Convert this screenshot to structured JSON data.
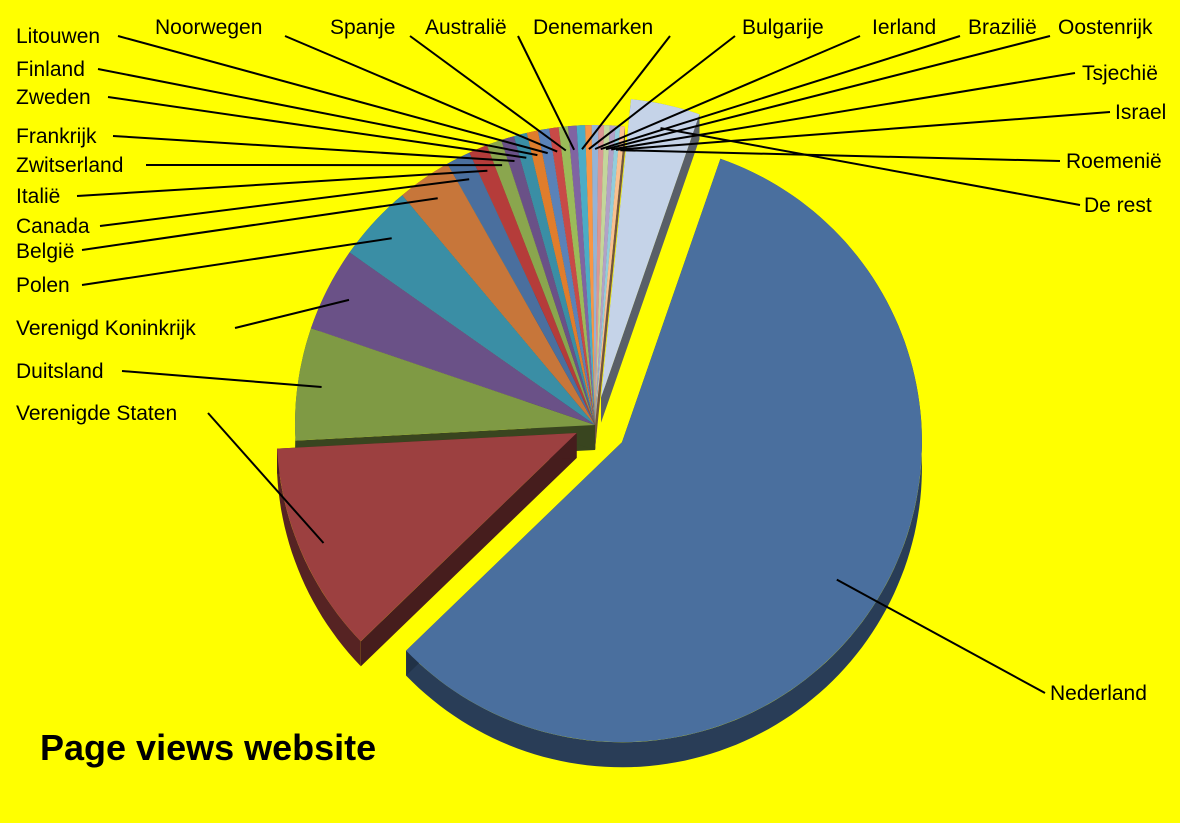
{
  "chart_data": {
    "type": "pie",
    "style": "3d-exploded",
    "title": "Page views website",
    "background": "#ffff00",
    "exploded": [
      "Nederland",
      "De rest",
      "Verenigde Staten"
    ],
    "slices": [
      {
        "label": "Nederland",
        "value": 57,
        "color": "#4a6f9e"
      },
      {
        "label": "Verenigde Staten",
        "value": 11.3,
        "color": "#9c4040"
      },
      {
        "label": "Duitsland",
        "value": 6.0,
        "color": "#7f9a44"
      },
      {
        "label": "Verenigd Koninkrijk",
        "value": 4.5,
        "color": "#6a5187"
      },
      {
        "label": "Polen",
        "value": 4.1,
        "color": "#3a8ea5"
      },
      {
        "label": "België",
        "value": 2.9,
        "color": "#c7763a"
      },
      {
        "label": "Canada",
        "value": 1.3,
        "color": "#4a6f9e"
      },
      {
        "label": "Italië",
        "value": 1.0,
        "color": "#b53c3a"
      },
      {
        "label": "Zwitserland",
        "value": 0.8,
        "color": "#8aa64e"
      },
      {
        "label": "Frankrijk",
        "value": 0.7,
        "color": "#6a5187"
      },
      {
        "label": "Zweden",
        "value": 0.7,
        "color": "#3a8ea5"
      },
      {
        "label": "Finland",
        "value": 0.6,
        "color": "#e07d2c"
      },
      {
        "label": "Litouwen",
        "value": 0.6,
        "color": "#5a82b8"
      },
      {
        "label": "Noorwegen",
        "value": 0.5,
        "color": "#c84a47"
      },
      {
        "label": "Spanje",
        "value": 0.5,
        "color": "#9bbb59"
      },
      {
        "label": "Australië",
        "value": 0.45,
        "color": "#8064a2"
      },
      {
        "label": "Denemarken",
        "value": 0.45,
        "color": "#4bacc6"
      },
      {
        "label": "Bulgarije",
        "value": 0.35,
        "color": "#f79646"
      },
      {
        "label": "Ierland",
        "value": 0.35,
        "color": "#95b3d7"
      },
      {
        "label": "Brazilië",
        "value": 0.3,
        "color": "#da9694"
      },
      {
        "label": "Oostenrijk",
        "value": 0.3,
        "color": "#c3d69b"
      },
      {
        "label": "Tsjechië",
        "value": 0.3,
        "color": "#b2a1c7"
      },
      {
        "label": "Israel",
        "value": 0.25,
        "color": "#92cddc"
      },
      {
        "label": "Roemenië",
        "value": 0.25,
        "color": "#fac090"
      },
      {
        "label": "De rest",
        "value": 3.7,
        "color": "#c5d3e8"
      }
    ]
  }
}
